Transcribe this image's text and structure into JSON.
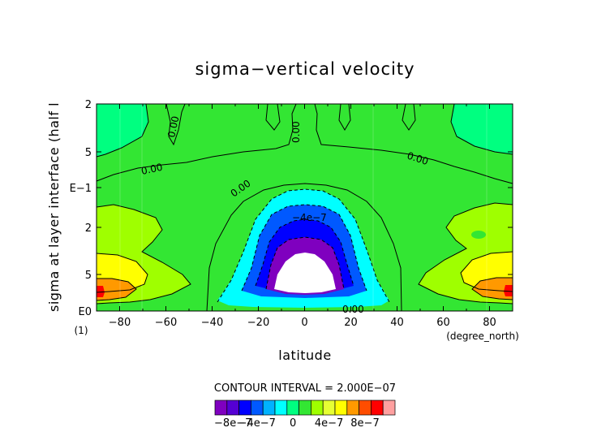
{
  "chart_data": {
    "type": "heatmap",
    "title": "sigma−vertical velocity",
    "xlabel": "latitude",
    "ylabel": "sigma at layer interface (half l",
    "x_unit": "(degree_north)",
    "y_corner_label": "(1)",
    "xlim": [
      -90,
      90
    ],
    "x_ticks": [
      "−80",
      "−60",
      "−40",
      "−20",
      "0",
      "20",
      "40",
      "60",
      "80"
    ],
    "y_ticks": [
      "2",
      "5",
      "E−1",
      "2",
      "5",
      "E0"
    ],
    "contour_interval_text": "CONTOUR INTERVAL = 2.000E−07",
    "contour_labels": [
      {
        "text": "0.00"
      },
      {
        "text": "0.00"
      },
      {
        "text": "0.00"
      },
      {
        "text": "0.00"
      },
      {
        "text": "0.00"
      },
      {
        "text": "−4e−7"
      },
      {
        "text": "0.00"
      }
    ],
    "levels": {
      "center_field_value": -1e-06,
      "level_min": -1e-06,
      "level_max": 1e-06,
      "interval": 2e-07
    },
    "colorbar": {
      "colors": [
        "#7f00bf",
        "#5500d4",
        "#0000ff",
        "#0059ff",
        "#00b2ff",
        "#00ffff",
        "#00ff80",
        "#33e633",
        "#9fff00",
        "#e6ff33",
        "#ffff00",
        "#ff9900",
        "#ff4d00",
        "#ff0000",
        "#ffa0a0"
      ],
      "tick_labels": [
        "−8e−7",
        "−4e−7",
        "0",
        "4e−7",
        "8e−7"
      ]
    },
    "palette": {
      "below_min": "#ffffff",
      "n_minus_5": "#7f00bf",
      "n_minus_4": "#0000ff",
      "n_minus_3": "#0059ff",
      "n_minus_2": "#00ffff",
      "n_minus_1": "#00ff80",
      "zero": "#33e633",
      "p1": "#9fff00",
      "p2": "#ffff00",
      "p3": "#ff9900",
      "p4": "#ff0000"
    }
  }
}
